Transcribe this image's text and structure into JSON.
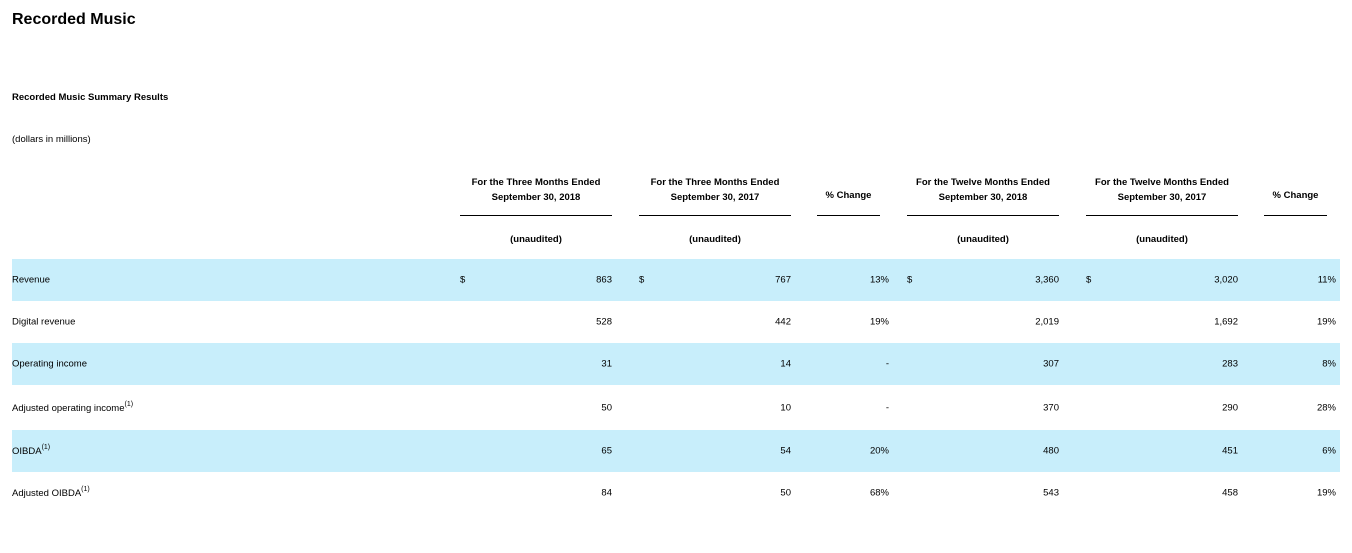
{
  "title": "Recorded Music",
  "subtitle": "Recorded Music Summary Results",
  "units": "(dollars in millions)",
  "columns": [
    {
      "line1": "For the Three Months Ended",
      "line2": "September 30, 2018",
      "sub": "(unaudited)"
    },
    {
      "line1": "For the Three Months Ended",
      "line2": "September 30, 2017",
      "sub": "(unaudited)"
    },
    {
      "label": "% Change"
    },
    {
      "line1": "For the Twelve Months Ended",
      "line2": "September 30, 2018",
      "sub": "(unaudited)"
    },
    {
      "line1": "For the Twelve Months Ended",
      "line2": "September 30, 2017",
      "sub": "(unaudited)"
    },
    {
      "label": "% Change"
    }
  ],
  "rows": [
    {
      "label": "Revenue",
      "note": "",
      "dollar": "$",
      "q2018": "863",
      "q2017": "767",
      "q_change": "13%",
      "y2018": "3,360",
      "y2017": "3,020",
      "y_change": "11%"
    },
    {
      "label": "Digital revenue",
      "note": "",
      "dollar": "",
      "q2018": "528",
      "q2017": "442",
      "q_change": "19%",
      "y2018": "2,019",
      "y2017": "1,692",
      "y_change": "19%"
    },
    {
      "label": "Operating income",
      "note": "",
      "dollar": "",
      "q2018": "31",
      "q2017": "14",
      "q_change": "-",
      "y2018": "307",
      "y2017": "283",
      "y_change": "8%"
    },
    {
      "label": "Adjusted operating income",
      "note": "(1)",
      "dollar": "",
      "q2018": "50",
      "q2017": "10",
      "q_change": "-",
      "y2018": "370",
      "y2017": "290",
      "y_change": "28%"
    },
    {
      "label": "OIBDA",
      "note": "(1)",
      "dollar": "",
      "q2018": "65",
      "q2017": "54",
      "q_change": "20%",
      "y2018": "480",
      "y2017": "451",
      "y_change": "6%"
    },
    {
      "label": "Adjusted OIBDA",
      "note": "(1)",
      "dollar": "",
      "q2018": "84",
      "q2017": "50",
      "q_change": "68%",
      "y2018": "543",
      "y2017": "458",
      "y_change": "19%"
    }
  ]
}
